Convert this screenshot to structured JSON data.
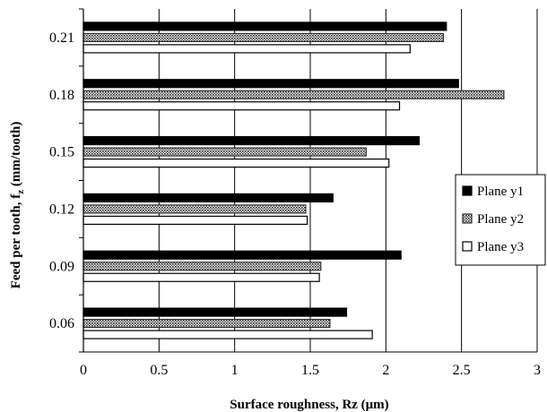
{
  "chart_data": {
    "type": "bar",
    "orientation": "horizontal",
    "categories": [
      "0.06",
      "0.09",
      "0.12",
      "0.15",
      "0.18",
      "0.21"
    ],
    "series": [
      {
        "name": "Plane y1",
        "values": [
          1.74,
          2.1,
          1.65,
          2.22,
          2.48,
          2.4
        ],
        "color": "#000000",
        "fill": "solid"
      },
      {
        "name": "Plane y2",
        "values": [
          1.63,
          1.57,
          1.47,
          1.87,
          2.78,
          2.38
        ],
        "color": "#555555",
        "fill": "dotted"
      },
      {
        "name": "Plane y3",
        "values": [
          1.91,
          1.56,
          1.48,
          2.02,
          2.09,
          2.16
        ],
        "color": "#ffffff",
        "fill": "hollow"
      }
    ],
    "xlabel": "Surface roughness, Rz (μm)",
    "ylabel": "Feed per tooth, f",
    "ylabel_subscript": "z",
    "ylabel_suffix": " (mm/tooth)",
    "xlim": [
      0,
      3
    ],
    "xticks": [
      "0",
      "0.5",
      "1",
      "1.5",
      "2",
      "2.5",
      "3"
    ],
    "xticks_values": [
      0,
      0.5,
      1,
      1.5,
      2,
      2.5,
      3
    ],
    "grid": "vertical",
    "legend_position": "right"
  }
}
